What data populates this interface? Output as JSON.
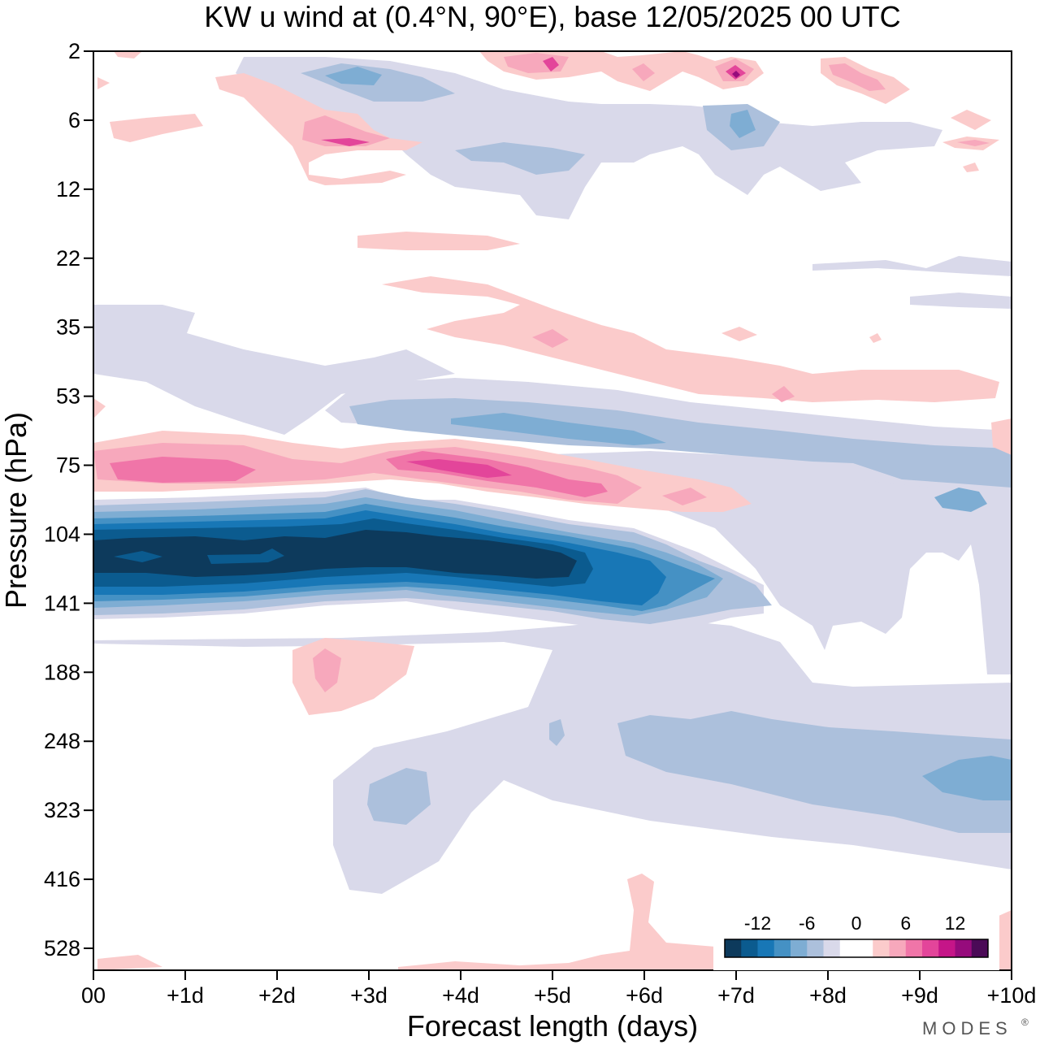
{
  "chart_data": {
    "type": "heatmap",
    "title": "KW u wind at (0.4°N, 90°E),  base 12/05/2025  00 UTC",
    "xlabel": "Forecast length (days)",
    "ylabel": "Pressure (hPa)",
    "xlim": [
      0,
      10
    ],
    "x_ticks": [
      "00",
      "+1d",
      "+2d",
      "+3d",
      "+4d",
      "+5d",
      "+6d",
      "+7d",
      "+8d",
      "+9d",
      "+10d"
    ],
    "y_ticks": [
      "2",
      "6",
      "12",
      "22",
      "35",
      "53",
      "75",
      "104",
      "141",
      "188",
      "248",
      "323",
      "416",
      "528"
    ],
    "y_axis_inverted": true,
    "grid": false,
    "colorbar": {
      "placement": "bottom-right",
      "tick_labels": [
        "-12",
        "-6",
        "0",
        "6",
        "12"
      ],
      "levels": [
        -16,
        -14,
        -12,
        -10,
        -8,
        -6,
        -4,
        -2,
        0,
        2,
        4,
        6,
        8,
        10,
        12,
        14,
        16
      ],
      "colors": [
        "#0d3a5c",
        "#0b5b8f",
        "#1877b6",
        "#4591c4",
        "#7eadd3",
        "#acc0dc",
        "#d9d9ea",
        "#ffffff",
        "#ffffff",
        "#fbcbcb",
        "#f7a8bc",
        "#f075a8",
        "#e3459a",
        "#c51588",
        "#960b7c",
        "#4b0a57"
      ]
    },
    "features": [
      {
        "name": "strong easterly jet",
        "sign": "negative",
        "min_value": -16,
        "day_range": [
          0,
          6.3
        ],
        "pressure_range_hPa": [
          104,
          141
        ]
      },
      {
        "name": "westerly band above jet",
        "sign": "positive",
        "max_value": 10,
        "day_range": [
          0,
          7
        ],
        "pressure_range_hPa": [
          65,
          90
        ]
      },
      {
        "name": "easterly band",
        "sign": "negative",
        "min_value": -8,
        "day_range": [
          2.5,
          10
        ],
        "pressure_range_hPa": [
          50,
          65
        ]
      },
      {
        "name": "upper easterly region",
        "sign": "negative",
        "min_value": -10,
        "day_range": [
          6.5,
          10
        ],
        "pressure_range_hPa": [
          75,
          190
        ]
      },
      {
        "name": "lower-tropospheric easterlies",
        "sign": "negative",
        "min_value": -8,
        "day_range": [
          2.7,
          10
        ],
        "pressure_range_hPa": [
          190,
          420
        ]
      },
      {
        "name": "stratospheric westerly patches",
        "sign": "positive",
        "max_value": 10,
        "day_range": [
          1,
          9.5
        ],
        "pressure_range_hPa": [
          2,
          12
        ]
      }
    ]
  },
  "branding": {
    "logo_text": "MODES",
    "registered_mark": "®"
  }
}
